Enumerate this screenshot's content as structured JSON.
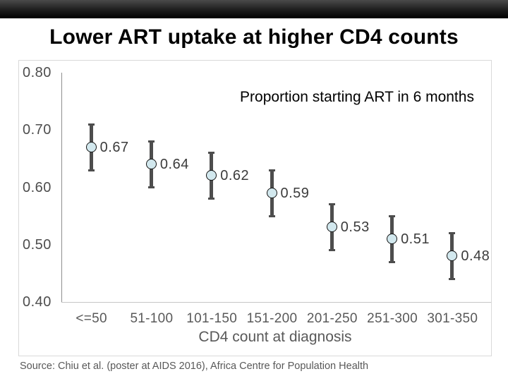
{
  "slide": {
    "title": "Lower ART uptake at higher CD4 counts",
    "source": "Source: Chiu et al. (poster at AIDS 2016), Africa Centre for Population Health"
  },
  "colors": {
    "marker_fill": "#d2e8ee",
    "marker_stroke": "#141414",
    "error_bar": "#4d4d4d",
    "y_axis_line": "#8f8f8f",
    "x_axis_line": "#c6c6c6",
    "frame_border": "#d9d9d9",
    "tick_text": "#4d4d4d",
    "category_text": "#595959",
    "value_label_text": "#3b3b3b",
    "top_bar": "#000000"
  },
  "chart_data": {
    "type": "scatter",
    "annotation": "Proportion starting ART in 6 months",
    "xlabel": "CD4 count at diagnosis",
    "ylim": [
      0.4,
      0.8
    ],
    "yticks": [
      0.8,
      0.7,
      0.6,
      0.5,
      0.4
    ],
    "grid": false,
    "legend": "none",
    "categories": [
      "<=50",
      "51-100",
      "101-150",
      "151-200",
      "201-250",
      "251-300",
      "301-350"
    ],
    "series": [
      {
        "name": "Proportion starting ART in 6 months",
        "points": [
          {
            "category": "<=50",
            "value": 0.67,
            "ci_low": 0.63,
            "ci_high": 0.71
          },
          {
            "category": "51-100",
            "value": 0.64,
            "ci_low": 0.6,
            "ci_high": 0.68
          },
          {
            "category": "101-150",
            "value": 0.62,
            "ci_low": 0.58,
            "ci_high": 0.66
          },
          {
            "category": "151-200",
            "value": 0.59,
            "ci_low": 0.55,
            "ci_high": 0.63
          },
          {
            "category": "201-250",
            "value": 0.53,
            "ci_low": 0.49,
            "ci_high": 0.57
          },
          {
            "category": "251-300",
            "value": 0.51,
            "ci_low": 0.47,
            "ci_high": 0.55
          },
          {
            "category": "301-350",
            "value": 0.48,
            "ci_low": 0.44,
            "ci_high": 0.52
          }
        ]
      }
    ]
  }
}
